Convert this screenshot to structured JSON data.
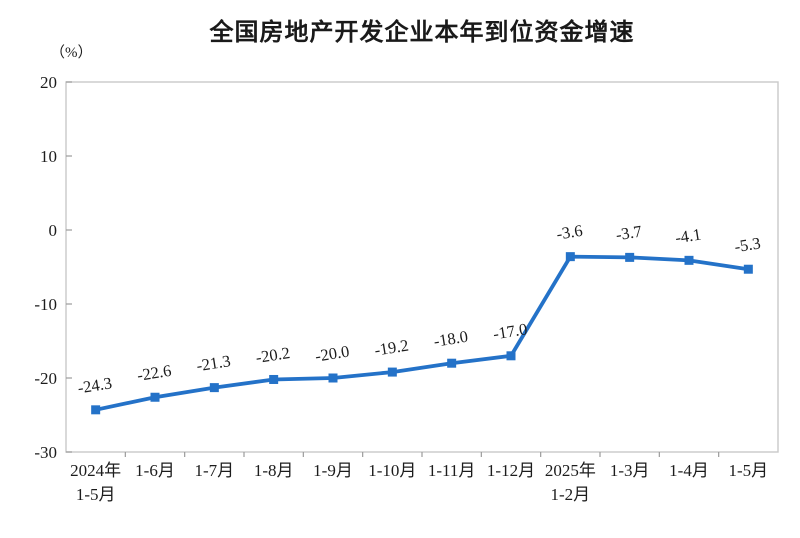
{
  "chart_data": {
    "type": "line",
    "title": "全国房地产开发企业本年到位资金增速",
    "unit_label": "（%）",
    "categories": [
      "2024年\n1-5月",
      "1-6月",
      "1-7月",
      "1-8月",
      "1-9月",
      "1-10月",
      "1-11月",
      "1-12月",
      "2025年\n1-2月",
      "1-3月",
      "1-4月",
      "1-5月"
    ],
    "values": [
      -24.3,
      -22.6,
      -21.3,
      -20.2,
      -20.0,
      -19.2,
      -18.0,
      -17.0,
      -3.6,
      -3.7,
      -4.1,
      -5.3
    ],
    "data_labels": [
      "-24.3",
      "-22.6",
      "-21.3",
      "-20.2",
      "-20.0",
      "-19.2",
      "-18.0",
      "-17.0",
      "-3.6",
      "-3.7",
      "-4.1",
      "-5.3"
    ],
    "xlabel": "",
    "ylabel": "（%）",
    "ylim": [
      -30,
      20
    ],
    "yticks": [
      20,
      10,
      0,
      -10,
      -20,
      -30
    ],
    "grid": false,
    "legend": "none",
    "line_color": "#2472C8",
    "marker": "square",
    "axis_color": "#C9C9C9",
    "tick_color": "#9B9B9B",
    "text_color": "#1c1c1c"
  }
}
